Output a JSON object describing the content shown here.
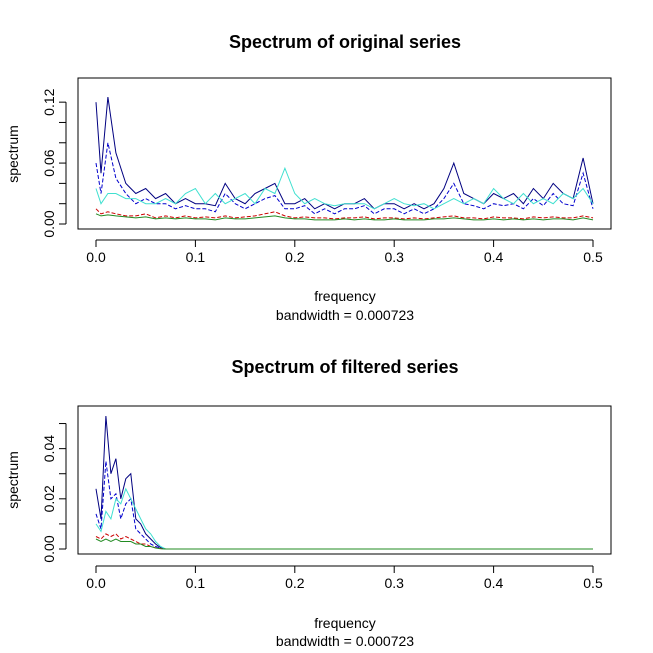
{
  "chart_data": [
    {
      "type": "line",
      "title": "Spectrum of original series",
      "xlabel": "frequency",
      "sublabel": "bandwidth = 0.000723",
      "ylabel": "spectrum",
      "xlim": [
        0,
        0.5
      ],
      "ylim": [
        0,
        0.13
      ],
      "xticks": [
        0.0,
        0.1,
        0.2,
        0.3,
        0.4,
        0.5
      ],
      "xtick_labels": [
        "0.0",
        "0.1",
        "0.2",
        "0.3",
        "0.4",
        "0.5"
      ],
      "yticks": [
        0.0,
        0.02,
        0.04,
        0.06,
        0.08,
        0.1,
        0.12
      ],
      "ytick_labels": [
        "0.00",
        "",
        "",
        "0.06",
        "",
        "",
        "0.12"
      ],
      "grid": false,
      "x": [
        0.0,
        0.005,
        0.012,
        0.02,
        0.03,
        0.04,
        0.05,
        0.06,
        0.07,
        0.08,
        0.09,
        0.1,
        0.11,
        0.12,
        0.13,
        0.14,
        0.15,
        0.16,
        0.17,
        0.18,
        0.19,
        0.2,
        0.21,
        0.22,
        0.23,
        0.24,
        0.25,
        0.26,
        0.27,
        0.28,
        0.29,
        0.3,
        0.31,
        0.32,
        0.33,
        0.34,
        0.35,
        0.36,
        0.37,
        0.38,
        0.39,
        0.4,
        0.41,
        0.42,
        0.43,
        0.44,
        0.45,
        0.46,
        0.47,
        0.48,
        0.49,
        0.5
      ],
      "series": [
        {
          "color": "#000080",
          "values": [
            0.12,
            0.05,
            0.125,
            0.07,
            0.04,
            0.03,
            0.035,
            0.025,
            0.03,
            0.02,
            0.025,
            0.02,
            0.02,
            0.018,
            0.04,
            0.025,
            0.02,
            0.03,
            0.035,
            0.04,
            0.02,
            0.02,
            0.025,
            0.015,
            0.02,
            0.015,
            0.02,
            0.02,
            0.025,
            0.015,
            0.02,
            0.02,
            0.015,
            0.02,
            0.015,
            0.02,
            0.035,
            0.06,
            0.03,
            0.025,
            0.02,
            0.03,
            0.025,
            0.03,
            0.02,
            0.035,
            0.025,
            0.04,
            0.03,
            0.025,
            0.065,
            0.02
          ]
        },
        {
          "color": "#0000cd",
          "values": [
            0.06,
            0.03,
            0.08,
            0.045,
            0.03,
            0.02,
            0.025,
            0.02,
            0.02,
            0.015,
            0.018,
            0.015,
            0.015,
            0.012,
            0.03,
            0.02,
            0.015,
            0.02,
            0.025,
            0.028,
            0.015,
            0.015,
            0.018,
            0.01,
            0.015,
            0.01,
            0.015,
            0.015,
            0.018,
            0.01,
            0.015,
            0.015,
            0.01,
            0.015,
            0.01,
            0.015,
            0.025,
            0.04,
            0.02,
            0.018,
            0.015,
            0.02,
            0.018,
            0.02,
            0.015,
            0.025,
            0.018,
            0.03,
            0.02,
            0.018,
            0.05,
            0.015
          ]
        },
        {
          "color": "#40e0d0",
          "values": [
            0.035,
            0.02,
            0.03,
            0.03,
            0.025,
            0.025,
            0.02,
            0.02,
            0.025,
            0.02,
            0.03,
            0.035,
            0.02,
            0.03,
            0.02,
            0.025,
            0.03,
            0.02,
            0.035,
            0.03,
            0.055,
            0.03,
            0.02,
            0.025,
            0.02,
            0.018,
            0.02,
            0.02,
            0.02,
            0.015,
            0.02,
            0.025,
            0.02,
            0.018,
            0.02,
            0.015,
            0.02,
            0.025,
            0.02,
            0.025,
            0.02,
            0.035,
            0.025,
            0.02,
            0.03,
            0.02,
            0.025,
            0.02,
            0.03,
            0.025,
            0.035,
            0.02
          ]
        },
        {
          "color": "#cc0000",
          "values": [
            0.015,
            0.01,
            0.012,
            0.01,
            0.008,
            0.008,
            0.01,
            0.006,
            0.008,
            0.006,
            0.008,
            0.006,
            0.007,
            0.006,
            0.008,
            0.006,
            0.007,
            0.008,
            0.01,
            0.012,
            0.008,
            0.006,
            0.007,
            0.006,
            0.006,
            0.005,
            0.006,
            0.006,
            0.007,
            0.005,
            0.006,
            0.006,
            0.005,
            0.006,
            0.005,
            0.006,
            0.007,
            0.008,
            0.006,
            0.006,
            0.005,
            0.007,
            0.006,
            0.006,
            0.005,
            0.007,
            0.006,
            0.007,
            0.006,
            0.006,
            0.008,
            0.006
          ]
        },
        {
          "color": "#228b22",
          "values": [
            0.01,
            0.008,
            0.009,
            0.008,
            0.007,
            0.006,
            0.007,
            0.005,
            0.006,
            0.005,
            0.006,
            0.005,
            0.005,
            0.004,
            0.006,
            0.005,
            0.005,
            0.006,
            0.007,
            0.008,
            0.006,
            0.005,
            0.005,
            0.004,
            0.004,
            0.004,
            0.005,
            0.004,
            0.005,
            0.004,
            0.004,
            0.005,
            0.004,
            0.004,
            0.004,
            0.005,
            0.005,
            0.006,
            0.005,
            0.004,
            0.004,
            0.005,
            0.004,
            0.005,
            0.004,
            0.005,
            0.004,
            0.005,
            0.005,
            0.004,
            0.006,
            0.004
          ]
        }
      ]
    },
    {
      "type": "line",
      "title": "Spectrum of filtered series",
      "xlabel": "frequency",
      "sublabel": "bandwidth = 0.000723",
      "ylabel": "spectrum",
      "xlim": [
        0,
        0.5
      ],
      "ylim": [
        0,
        0.055
      ],
      "xticks": [
        0.0,
        0.1,
        0.2,
        0.3,
        0.4,
        0.5
      ],
      "xtick_labels": [
        "0.0",
        "0.1",
        "0.2",
        "0.3",
        "0.4",
        "0.5"
      ],
      "yticks": [
        0.0,
        0.01,
        0.02,
        0.03,
        0.04,
        0.05
      ],
      "ytick_labels": [
        "0.00",
        "",
        "0.02",
        "",
        "0.04",
        ""
      ],
      "grid": false,
      "x": [
        0.0,
        0.005,
        0.01,
        0.015,
        0.02,
        0.025,
        0.03,
        0.035,
        0.04,
        0.045,
        0.05,
        0.055,
        0.06,
        0.065,
        0.07,
        0.08,
        0.1,
        0.2,
        0.3,
        0.4,
        0.5
      ],
      "series": [
        {
          "color": "#000080",
          "values": [
            0.024,
            0.012,
            0.053,
            0.03,
            0.036,
            0.02,
            0.028,
            0.03,
            0.012,
            0.01,
            0.006,
            0.004,
            0.002,
            0.0005,
            0.0,
            0.0,
            0.0,
            0.0,
            0.0,
            0.0,
            0.0
          ]
        },
        {
          "color": "#0000cd",
          "values": [
            0.014,
            0.008,
            0.035,
            0.02,
            0.022,
            0.012,
            0.018,
            0.02,
            0.008,
            0.006,
            0.004,
            0.002,
            0.001,
            0.0003,
            0.0,
            0.0,
            0.0,
            0.0,
            0.0,
            0.0,
            0.0
          ]
        },
        {
          "color": "#40e0d0",
          "values": [
            0.01,
            0.007,
            0.015,
            0.012,
            0.02,
            0.018,
            0.024,
            0.02,
            0.016,
            0.012,
            0.008,
            0.006,
            0.003,
            0.001,
            0.0,
            0.0,
            0.0,
            0.0,
            0.0,
            0.0,
            0.0
          ]
        },
        {
          "color": "#cc0000",
          "values": [
            0.005,
            0.004,
            0.006,
            0.005,
            0.006,
            0.004,
            0.005,
            0.004,
            0.003,
            0.002,
            0.002,
            0.001,
            0.0005,
            0.0002,
            0.0,
            0.0,
            0.0,
            0.0,
            0.0,
            0.0,
            0.0
          ]
        },
        {
          "color": "#228b22",
          "values": [
            0.004,
            0.003,
            0.004,
            0.003,
            0.004,
            0.003,
            0.003,
            0.003,
            0.002,
            0.002,
            0.001,
            0.001,
            0.0004,
            0.0001,
            0.0,
            0.0,
            0.0,
            0.0,
            0.0,
            0.0,
            0.0
          ]
        }
      ]
    }
  ]
}
